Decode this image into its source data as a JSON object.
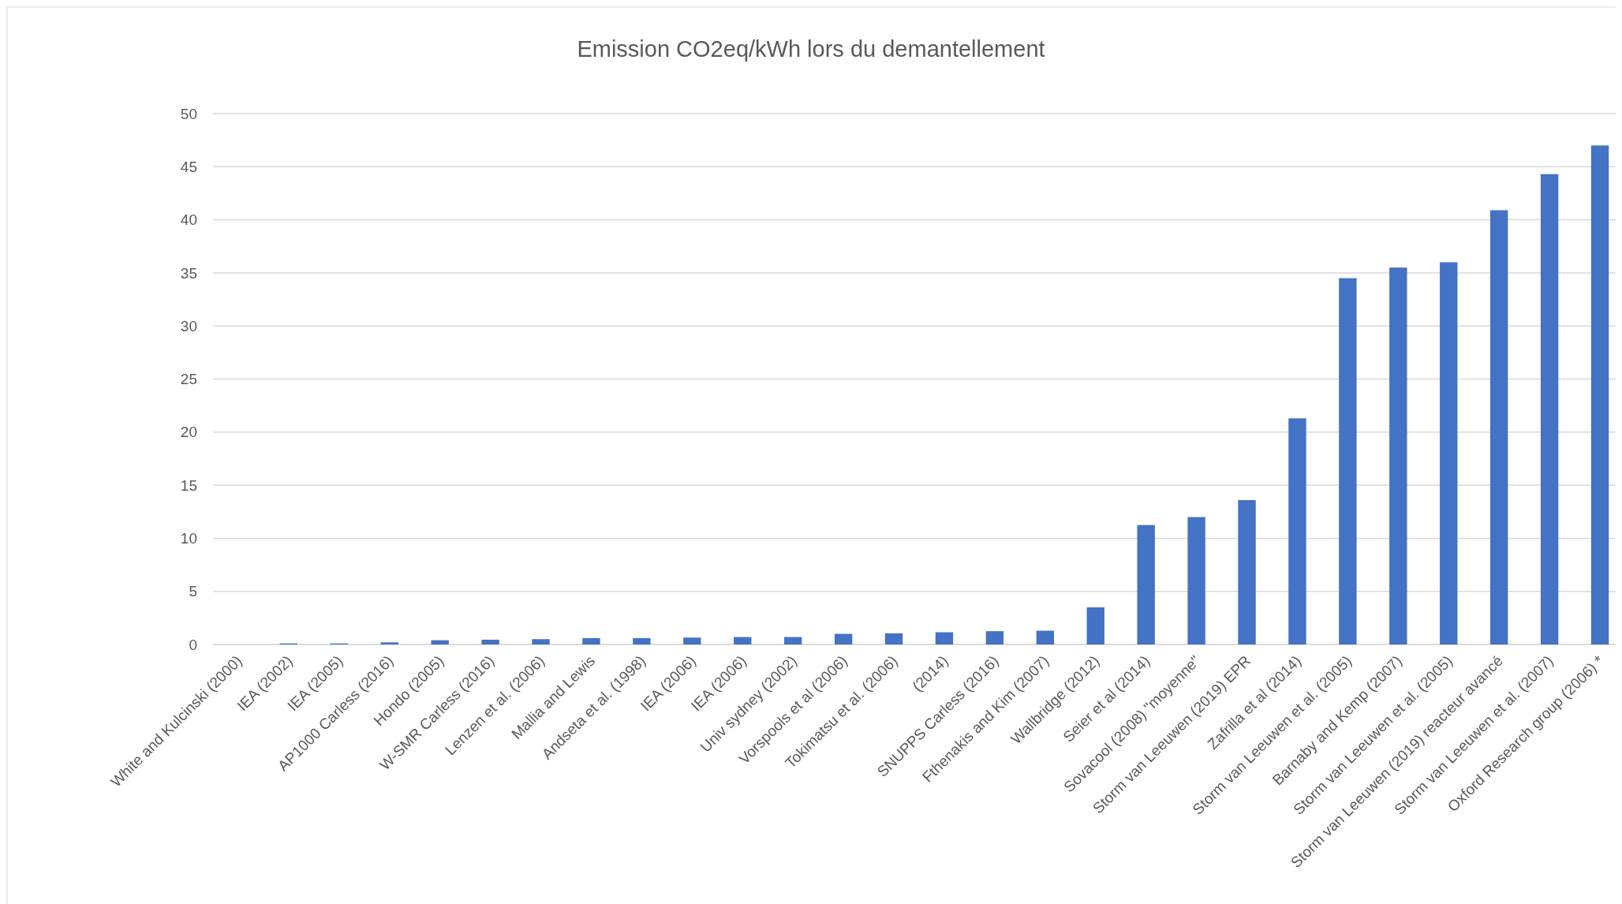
{
  "chart_data": {
    "type": "bar",
    "title": "Emission CO2eq/kWh lors du demantellement",
    "categories": [
      "White and Kulcinski (2000)",
      "IEA (2002)",
      "IEA (2005)",
      "AP1000 Carless (2016)",
      "Hondo (2005)",
      "W-SMR Carless (2016)",
      "Lenzen et al. (2006)",
      "Mallia and Lewis",
      "Andseta et al. (1998)",
      "IEA (2006)",
      "IEA (2006)",
      "Univ sydney (2002)",
      "Vorspools et al (2006)",
      "Tokimatsu et al. (2006)",
      "(2014)",
      "SNUPPS Carless (2016)",
      "Fthenakis and Kim (2007)",
      "Wallbridge (2012)",
      "Seier et al (2014)",
      "Sovacool (2008) \"moyenne\"",
      "Storm van Leeuwen (2019) EPR",
      "Zafrilla et al (2014)",
      "Storm van Leeuwen et al. (2005)",
      "Barnaby and Kemp (2007)",
      "Storm van Leeuwen et al. (2005)",
      "Storm van Leeuwen (2019) reacteur avancé",
      "Storm van Leeuwen et al. (2007)",
      "Oxford Research group (2006) *"
    ],
    "values": [
      0,
      0.1,
      0.1,
      0.2,
      0.4,
      0.45,
      0.5,
      0.6,
      0.6,
      0.65,
      0.7,
      0.7,
      1.0,
      1.05,
      1.15,
      1.25,
      1.3,
      3.5,
      11.25,
      12.0,
      13.6,
      21.3,
      34.5,
      35.5,
      36.0,
      40.9,
      44.3,
      47.0
    ],
    "color": "#4472c4",
    "ylim": [
      0,
      50
    ],
    "yticks": [
      0,
      5,
      10,
      15,
      20,
      25,
      30,
      35,
      40,
      45,
      50
    ],
    "grid": "y"
  }
}
